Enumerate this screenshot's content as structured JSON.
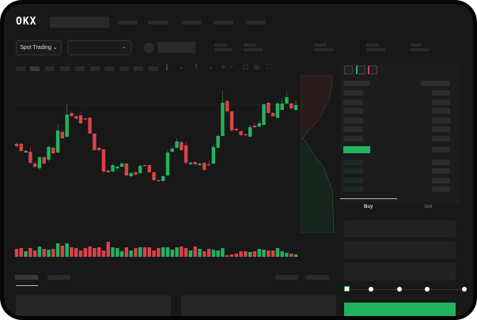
{
  "header": {
    "logo": "OKX"
  },
  "toolbar": {
    "market_select": "Spot Trading"
  },
  "trade_panel": {
    "tabs": [
      {
        "label": "Buy",
        "active": true
      },
      {
        "label": "Sell",
        "active": false
      }
    ],
    "slider_percent": 0
  },
  "colors": {
    "up": "#22b35e",
    "down": "#d9434a",
    "background": "#181818",
    "action": "#22b35e"
  },
  "chart_data": {
    "type": "candlestick",
    "candles": [
      [
        68,
        70,
        63,
        65
      ],
      [
        68,
        70,
        57,
        59
      ],
      [
        57,
        60,
        56,
        59
      ],
      [
        58,
        64,
        42,
        44
      ],
      [
        43,
        45,
        37,
        39
      ],
      [
        37,
        52,
        35,
        51
      ],
      [
        51,
        52,
        42,
        43
      ],
      [
        48,
        66,
        46,
        64
      ],
      [
        63,
        64,
        55,
        56
      ],
      [
        57,
        93,
        56,
        85
      ],
      [
        83,
        85,
        74,
        75
      ],
      [
        77,
        118,
        76,
        105
      ],
      [
        107,
        109,
        102,
        103
      ],
      [
        103,
        105,
        98,
        100
      ],
      [
        104,
        108,
        92,
        94
      ],
      [
        100,
        101,
        98,
        99
      ],
      [
        101,
        103,
        80,
        81
      ],
      [
        81,
        81,
        59,
        60
      ],
      [
        63,
        64,
        57,
        60
      ],
      [
        61,
        61,
        30,
        33
      ],
      [
        34,
        36,
        31,
        32
      ],
      [
        33,
        43,
        32,
        41
      ],
      [
        37,
        41,
        34,
        39
      ],
      [
        39,
        45,
        38,
        43
      ],
      [
        43,
        44,
        26,
        28
      ],
      [
        27,
        32,
        25,
        31
      ],
      [
        32,
        33,
        28,
        29
      ],
      [
        31,
        42,
        30,
        40
      ],
      [
        41,
        42,
        39,
        40
      ],
      [
        41,
        42,
        31,
        32
      ],
      [
        32,
        33,
        21,
        22
      ],
      [
        22,
        23,
        20,
        21
      ],
      [
        21,
        28,
        19,
        27
      ],
      [
        28,
        60,
        27,
        57
      ],
      [
        58,
        64,
        57,
        62
      ],
      [
        63,
        75,
        62,
        71
      ],
      [
        70,
        72,
        59,
        60
      ],
      [
        66,
        70,
        42,
        44
      ],
      [
        42,
        46,
        41,
        44
      ],
      [
        45,
        46,
        41,
        42
      ],
      [
        41,
        44,
        40,
        43
      ],
      [
        44,
        45,
        34,
        35
      ],
      [
        42,
        47,
        40,
        41
      ],
      [
        43,
        67,
        42,
        64
      ],
      [
        63,
        80,
        62,
        78
      ],
      [
        78,
        135,
        77,
        120
      ],
      [
        122,
        124,
        107,
        109
      ],
      [
        109,
        110,
        83,
        85
      ],
      [
        87,
        88,
        83,
        85
      ],
      [
        84,
        85,
        78,
        79
      ],
      [
        80,
        81,
        77,
        79
      ],
      [
        77,
        92,
        76,
        89
      ],
      [
        91,
        95,
        88,
        89
      ],
      [
        90,
        97,
        89,
        94
      ],
      [
        92,
        119,
        91,
        118
      ],
      [
        120,
        121,
        106,
        107
      ],
      [
        107,
        108,
        102,
        103
      ],
      [
        101,
        121,
        100,
        119
      ],
      [
        111,
        125,
        110,
        119
      ],
      [
        119,
        133,
        118,
        127
      ],
      [
        119,
        121,
        111,
        113
      ],
      [
        111,
        123,
        110,
        117
      ]
    ],
    "volume": [
      10,
      11,
      7,
      11,
      8,
      13,
      10,
      9,
      10,
      17,
      14,
      17,
      12,
      11,
      8,
      11,
      13,
      11,
      12,
      8,
      19,
      12,
      11,
      7,
      12,
      8,
      11,
      12,
      12,
      12,
      8,
      11,
      12,
      12,
      9,
      12,
      13,
      11,
      8,
      13,
      10,
      7,
      10,
      9,
      8,
      11,
      2,
      3,
      4,
      7,
      7,
      6,
      7,
      10,
      9,
      8,
      8,
      11,
      7,
      5,
      4,
      3
    ]
  }
}
